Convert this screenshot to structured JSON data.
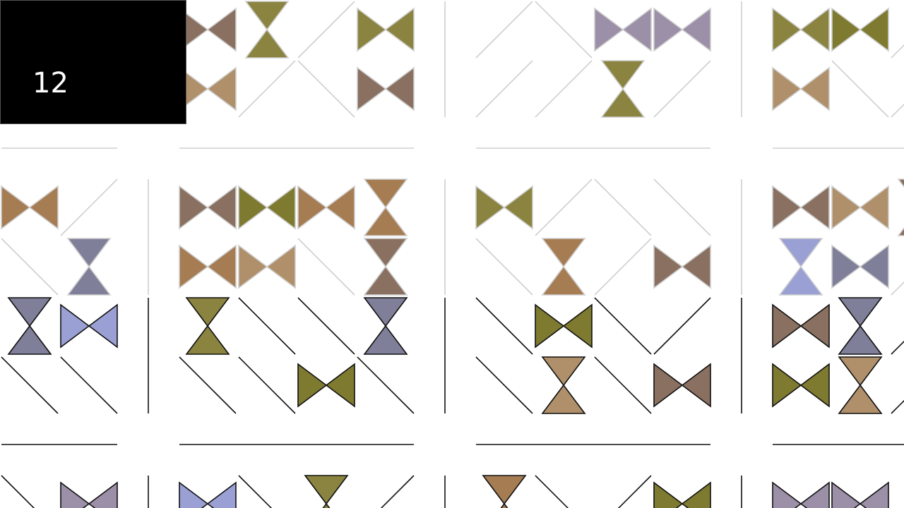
{
  "hud": {
    "counter": "12"
  }
}
